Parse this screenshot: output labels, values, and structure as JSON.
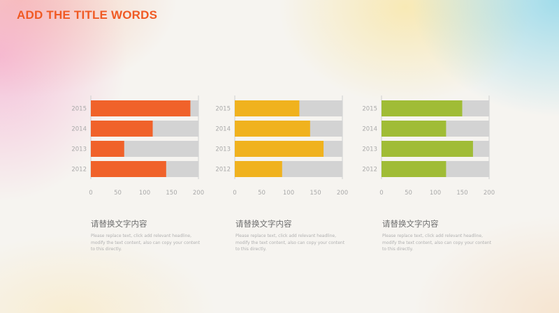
{
  "header": {
    "title": "ADD THE TITLE WORDS"
  },
  "colors": {
    "title": "#f05a24",
    "track": "#d3d3d3",
    "grid": "#cfcfcf"
  },
  "chart_data": [
    {
      "type": "bar",
      "orientation": "horizontal",
      "stacked_with_remainder": true,
      "categories": [
        "2015",
        "2014",
        "2013",
        "2012"
      ],
      "values": [
        185,
        115,
        62,
        140
      ],
      "xlim": [
        0,
        200
      ],
      "xticks": [
        0,
        50,
        100,
        150,
        200
      ],
      "color": "#f0622a",
      "grid": false
    },
    {
      "type": "bar",
      "orientation": "horizontal",
      "stacked_with_remainder": true,
      "categories": [
        "2015",
        "2014",
        "2013",
        "2012"
      ],
      "values": [
        120,
        140,
        165,
        88
      ],
      "xlim": [
        0,
        200
      ],
      "xticks": [
        0,
        50,
        100,
        150,
        200
      ],
      "color": "#f0b21e",
      "grid": false
    },
    {
      "type": "bar",
      "orientation": "horizontal",
      "stacked_with_remainder": true,
      "categories": [
        "2015",
        "2014",
        "2013",
        "2012"
      ],
      "values": [
        150,
        120,
        170,
        120
      ],
      "xlim": [
        0,
        200
      ],
      "xticks": [
        0,
        50,
        100,
        150,
        200
      ],
      "color": "#a0bc36",
      "grid": false
    }
  ],
  "descriptions": [
    {
      "heading": "请替换文字内容",
      "body": "Please replace text, click add relevant headline, modify the text content, also can copy your content to this directly."
    },
    {
      "heading": "请替换文字内容",
      "body": "Please replace text, click add relevant headline, modify the text content, also can copy your content to this directly."
    },
    {
      "heading": "请替换文字内容",
      "body": "Please replace text, click add relevant headline, modify the text content, also can copy your content to this directly."
    }
  ]
}
